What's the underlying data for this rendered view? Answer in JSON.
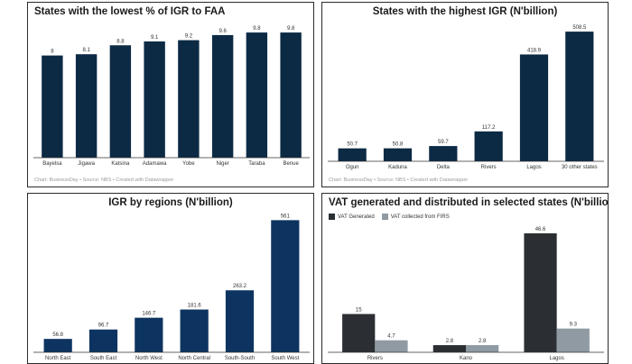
{
  "chart_data": [
    {
      "type": "bar",
      "title": "States with the lowest % of IGR to FAA",
      "categories": [
        "Bayelsa",
        "Jigawa",
        "Katsina",
        "Adamawa",
        "Yobe",
        "Niger",
        "Taraba",
        "Benue"
      ],
      "values": [
        8,
        8.1,
        8.8,
        9.1,
        9.2,
        9.6,
        9.8,
        9.8
      ],
      "value_labels": [
        "8",
        "8.1",
        "8.8",
        "9.1",
        "9.2",
        "9.6",
        "9.8",
        "9.8"
      ],
      "ylim": [
        0,
        10.3
      ],
      "grid": false,
      "color": "#0c2a44",
      "footer": "Chart: BusinessDay • Source: NBS • Created with Datawrapper"
    },
    {
      "type": "bar",
      "title": "States with the highest IGR (N'billion)",
      "categories": [
        "Ogun",
        "Kaduna",
        "Delta",
        "Rivers",
        "Lagos",
        "30 other states"
      ],
      "values": [
        50.7,
        50.8,
        59.7,
        117.2,
        418.9,
        508.5
      ],
      "value_labels": [
        "50.7",
        "50.8",
        "59.7",
        "117.2",
        "418.9",
        "508.5"
      ],
      "ylim": [
        0,
        530
      ],
      "grid": false,
      "color": "#0c2a44",
      "footer": "Chart: BusinessDay • Source: NBS • Created with Datawrapper"
    },
    {
      "type": "bar",
      "title": "IGR by regions (N'billion)",
      "categories": [
        "North East",
        "South East",
        "North West",
        "North Central",
        "South-South",
        "South West"
      ],
      "values": [
        56.8,
        96.7,
        146.7,
        181.6,
        263.2,
        561
      ],
      "value_labels": [
        "56.8",
        "96.7",
        "146.7",
        "181.6",
        "263.2",
        "561"
      ],
      "ylim": [
        0,
        570
      ],
      "grid": false,
      "color": "#0d3461"
    },
    {
      "type": "bar",
      "title": "VAT generated and distributed in selected states (N'billion)",
      "categories": [
        "Rivers",
        "Kano",
        "Lagos"
      ],
      "series": [
        {
          "name": "VAT Generated",
          "values": [
            15,
            2.8,
            46.6
          ],
          "labels": [
            "15",
            "2.8",
            "46.6"
          ],
          "color": "#2b2f33"
        },
        {
          "name": "VAT collected from FIRS",
          "values": [
            4.7,
            2.8,
            9.3
          ],
          "labels": [
            "4.7",
            "2.8",
            "9.3"
          ],
          "color": "#8f9aa3"
        }
      ],
      "ylim": [
        0,
        48
      ],
      "grid": false,
      "legend": "top-left"
    }
  ]
}
